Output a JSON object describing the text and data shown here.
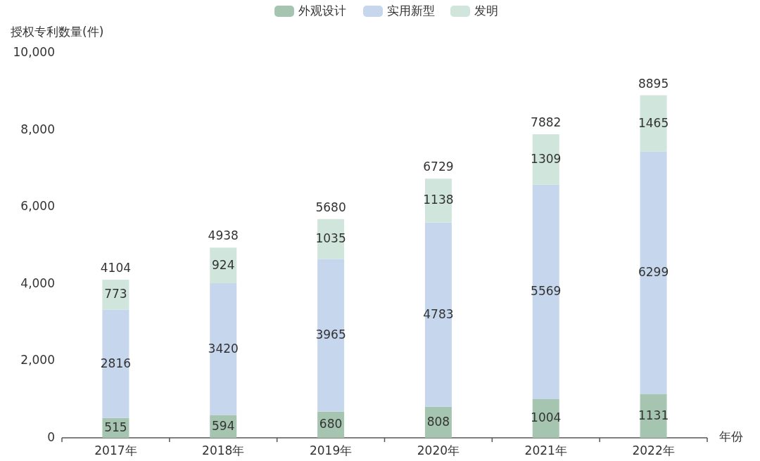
{
  "chart_data": {
    "type": "bar",
    "stacked": true,
    "ylabel": "授权专利数量(件)",
    "xlabel": "年份",
    "categories": [
      "2017年",
      "2018年",
      "2019年",
      "2020年",
      "2021年",
      "2022年"
    ],
    "series": [
      {
        "name": "外观设计",
        "color": "#a5c5b0",
        "values": [
          515,
          594,
          680,
          808,
          1004,
          1131
        ]
      },
      {
        "name": "实用新型",
        "color": "#c6d6ec",
        "values": [
          2816,
          3420,
          3965,
          4783,
          5569,
          6299
        ]
      },
      {
        "name": "发明",
        "color": "#d0e5dc",
        "values": [
          773,
          924,
          1035,
          1138,
          1309,
          1465
        ]
      }
    ],
    "data_labels": true,
    "totals": [
      "4104",
      "4938",
      "5680",
      "6729",
      "7882",
      "8895"
    ],
    "ylim": [
      0,
      10000
    ],
    "yticks": [
      0,
      {
        "value": 2000,
        "label": "2,000"
      },
      {
        "value": 4000,
        "label": "4,000"
      },
      {
        "value": 6000,
        "label": "6,000"
      },
      {
        "value": 8000,
        "label": "8,000"
      },
      {
        "value": 10000,
        "label": "10,000"
      }
    ],
    "legend": "top"
  }
}
